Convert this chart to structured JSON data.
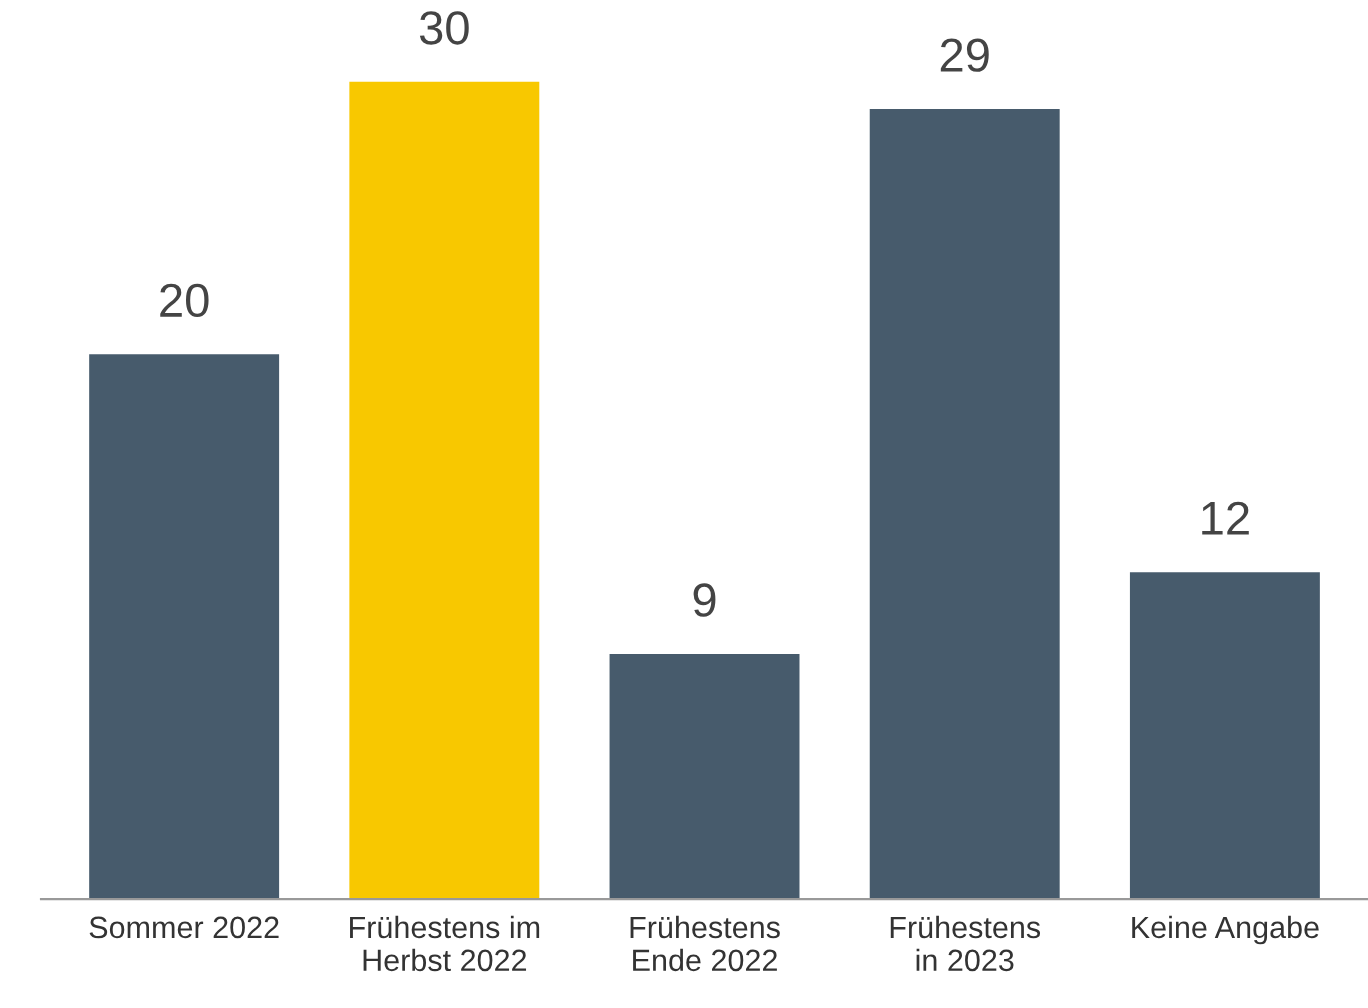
{
  "chart_data": {
    "type": "bar",
    "categories": [
      "Sommer 2022",
      "Frühestens im\nHerbst 2022",
      "Frühestens\nEnde 2022",
      "Frühestens\nin 2023",
      "Keine Angabe"
    ],
    "values": [
      20,
      30,
      9,
      29,
      12
    ],
    "colors": [
      "#475b6c",
      "#f8c800",
      "#475b6c",
      "#475b6c",
      "#475b6c"
    ],
    "data_labels": true
  }
}
